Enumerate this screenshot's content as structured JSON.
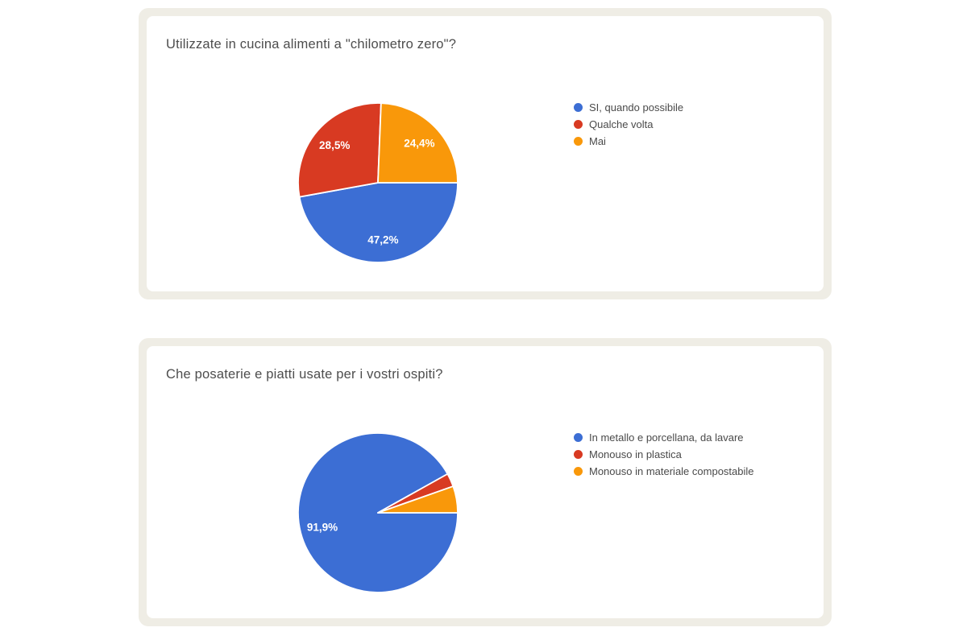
{
  "page": {
    "background_color": "#ffffff",
    "card_frame_color": "#efede5",
    "card_color": "#ffffff"
  },
  "chart_data": [
    {
      "type": "pie",
      "title": "Utilizzate in cucina alimenti a \"chilometro zero\"?",
      "legend_position": "right",
      "start_angle": "3-oclock",
      "direction": "clockwise",
      "slices": [
        {
          "label": "SI, quando possibile",
          "value_pct": 47.2,
          "display_label": "47,2%",
          "color": "#3c6ed4"
        },
        {
          "label": "Qualche volta",
          "value_pct": 28.5,
          "display_label": "28,5%",
          "color": "#d83a22"
        },
        {
          "label": "Mai",
          "value_pct": 24.4,
          "display_label": "24,4%",
          "color": "#f9980a"
        }
      ]
    },
    {
      "type": "pie",
      "title": "Che posaterie e piatti usate per i vostri ospiti?",
      "legend_position": "right",
      "start_angle": "3-oclock",
      "direction": "clockwise",
      "slices": [
        {
          "label": "In metallo e porcellana, da lavare",
          "value_pct": 91.9,
          "display_label": "91,9%",
          "color": "#3c6ed4"
        },
        {
          "label": "Monouso in plastica",
          "value_pct": 2.7,
          "display_label": "",
          "color": "#d83a22"
        },
        {
          "label": "Monouso in materiale compostabile",
          "value_pct": 5.4,
          "display_label": "",
          "color": "#f9980a"
        }
      ]
    }
  ]
}
